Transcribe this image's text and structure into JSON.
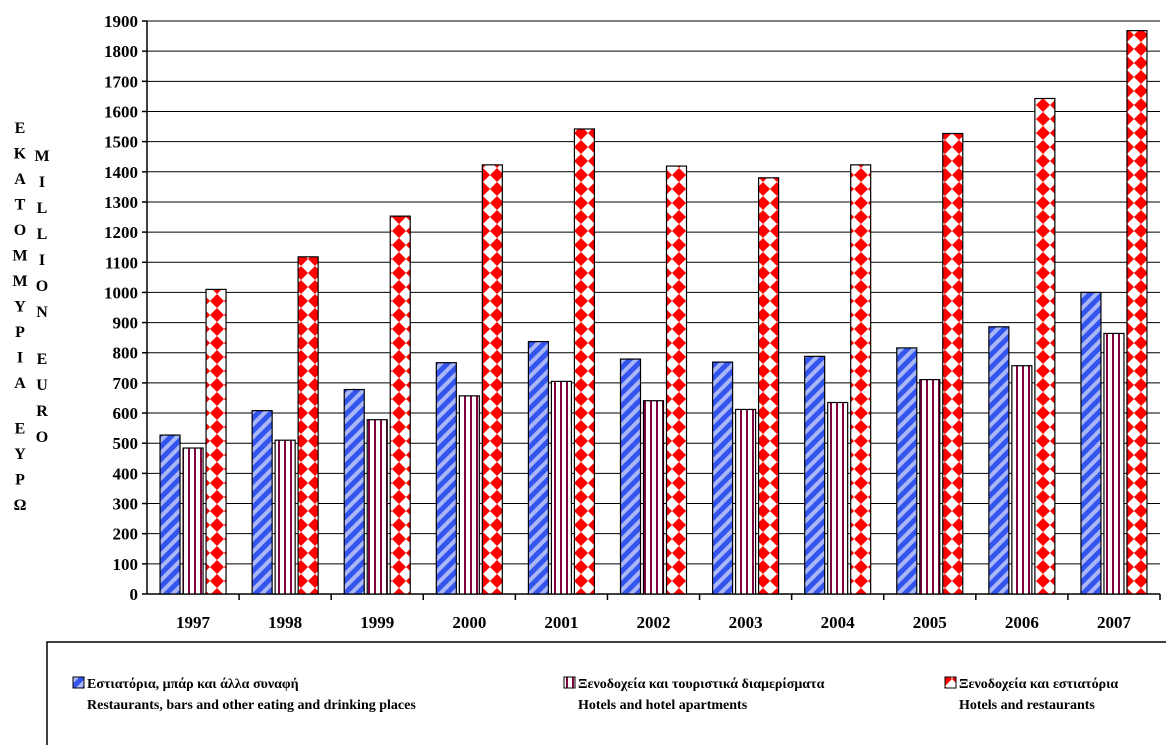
{
  "chart_data": {
    "type": "bar",
    "categories": [
      "1997",
      "1998",
      "1999",
      "2000",
      "2001",
      "2002",
      "2003",
      "2004",
      "2005",
      "2006",
      "2007"
    ],
    "series": [
      {
        "name": "Εστιατόρια, μπάρ και άλλα συναφή",
        "name_en": "Restaurants, bars and other eating and drinking places",
        "color": "#3355ee",
        "pattern": "diagonal-stripes",
        "values": [
          527,
          608,
          678,
          767,
          837,
          779,
          769,
          788,
          816,
          886,
          1000
        ]
      },
      {
        "name": "Ξενοδοχεία και τουριστικά διαμερίσματα",
        "name_en": "Hotels and hotel apartments",
        "color": "#800040",
        "pattern": "vertical-stripes",
        "values": [
          484,
          510,
          578,
          657,
          705,
          641,
          612,
          635,
          711,
          757,
          864
        ]
      },
      {
        "name": "Ξενοδοχεία και εστιατόρια",
        "name_en": "Hotels and restaurants",
        "color": "#ff0000",
        "pattern": "diamonds",
        "values": [
          1010,
          1118,
          1253,
          1423,
          1542,
          1419,
          1380,
          1423,
          1527,
          1643,
          1868
        ]
      }
    ],
    "yaxis": {
      "ylim": [
        0,
        1900
      ],
      "ticks": [
        "0",
        "100",
        "200",
        "300",
        "400",
        "500",
        "600",
        "700",
        "800",
        "900",
        "1000",
        "1100",
        "1200",
        "1300",
        "1400",
        "1500",
        "1600",
        "1700",
        "1800",
        "1900"
      ],
      "label_gr": "ΕΚΑΤΟΜΜΥΡΙΑ ΕΥΡΩ",
      "label_en": "MILLION EURO"
    },
    "grid": true,
    "legend_position": "bottom"
  }
}
